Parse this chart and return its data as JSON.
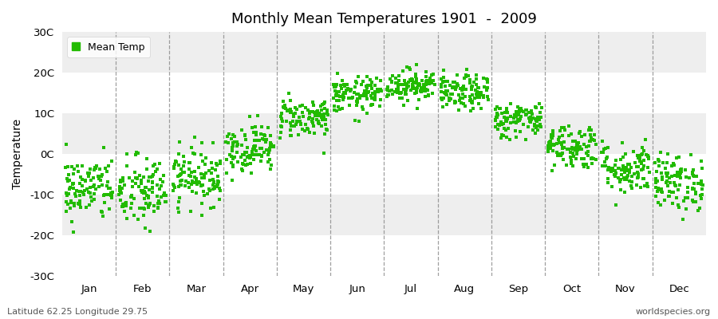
{
  "title": "Monthly Mean Temperatures 1901  -  2009",
  "ylabel": "Temperature",
  "yticks": [
    -30,
    -20,
    -10,
    0,
    10,
    20,
    30
  ],
  "ytick_labels": [
    "-30C",
    "-20C",
    "-10C",
    "0C",
    "10C",
    "20C",
    "30C"
  ],
  "ylim": [
    -30,
    30
  ],
  "months": [
    "Jan",
    "Feb",
    "Mar",
    "Apr",
    "May",
    "Jun",
    "Jul",
    "Aug",
    "Sep",
    "Oct",
    "Nov",
    "Dec"
  ],
  "dot_color": "#22BB00",
  "bg_color": "#FFFFFF",
  "band_color_light": "#FFFFFF",
  "band_color_dark": "#EEEEEE",
  "subtitle_left": "Latitude 62.25 Longitude 29.75",
  "subtitle_right": "worldspecies.org",
  "legend_label": "Mean Temp",
  "n_years": 109,
  "month_means": [
    -8.5,
    -9.5,
    -5.5,
    1.5,
    9.0,
    14.5,
    17.0,
    15.0,
    8.5,
    2.0,
    -3.5,
    -7.0
  ],
  "month_stds": [
    4.0,
    4.5,
    3.5,
    3.0,
    2.5,
    2.2,
    2.0,
    2.2,
    2.2,
    2.8,
    3.2,
    3.5
  ],
  "random_seed": 42
}
